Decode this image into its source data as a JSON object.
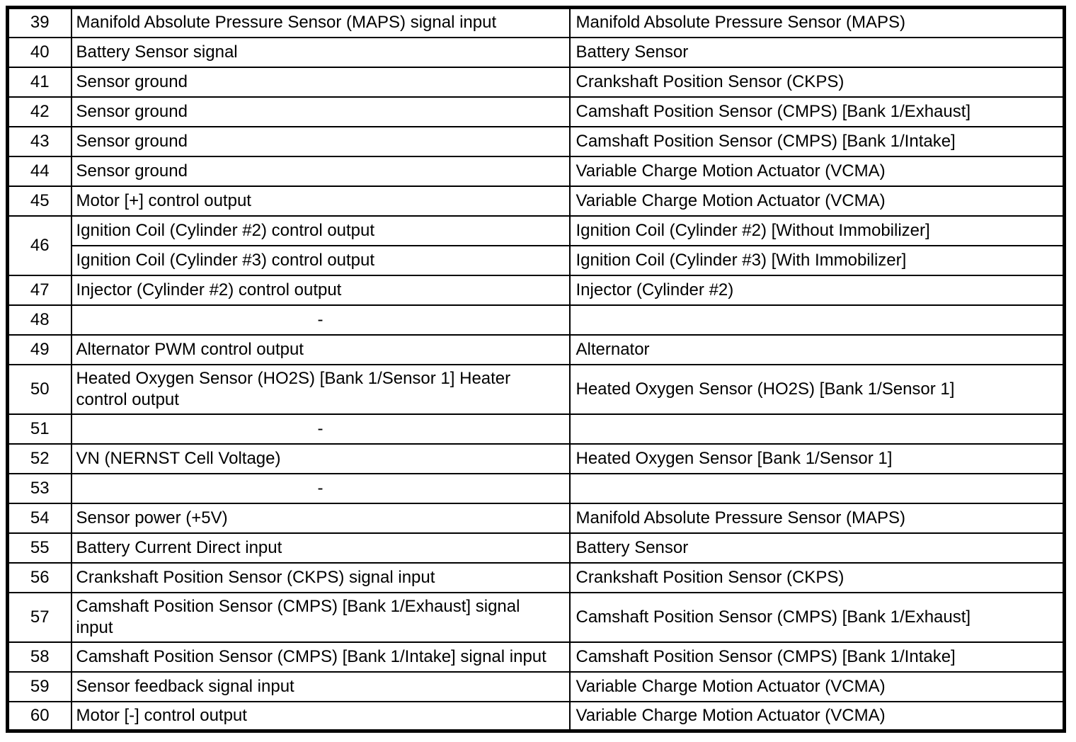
{
  "colors": {
    "background": "#ffffff",
    "border": "#000000",
    "text": "#000000"
  },
  "table": {
    "rows": [
      {
        "pin": "39",
        "description": "Manifold Absolute Pressure Sensor (MAPS) signal input",
        "component": "Manifold Absolute Pressure Sensor (MAPS)"
      },
      {
        "pin": "40",
        "description": "Battery Sensor signal",
        "component": "Battery Sensor"
      },
      {
        "pin": "41",
        "description": "Sensor ground",
        "component": "Crankshaft Position Sensor (CKPS)"
      },
      {
        "pin": "42",
        "description": "Sensor ground",
        "component": "Camshaft Position Sensor (CMPS) [Bank 1/Exhaust]"
      },
      {
        "pin": "43",
        "description": "Sensor ground",
        "component": "Camshaft Position Sensor (CMPS) [Bank 1/Intake]"
      },
      {
        "pin": "44",
        "description": "Sensor ground",
        "component": "Variable Charge Motion Actuator (VCMA)"
      },
      {
        "pin": "45",
        "description": "Motor [+] control output",
        "component": "Variable Charge Motion Actuator (VCMA)"
      },
      {
        "pin": "46",
        "subrows": [
          {
            "description": "Ignition Coil (Cylinder #2) control output",
            "component": "Ignition Coil (Cylinder #2) [Without Immobilizer]"
          },
          {
            "description": "Ignition Coil (Cylinder #3) control output",
            "component": "Ignition Coil (Cylinder #3) [With Immobilizer]"
          }
        ]
      },
      {
        "pin": "47",
        "description": "Injector (Cylinder #2) control output",
        "component": "Injector (Cylinder #2)"
      },
      {
        "pin": "48",
        "description": "-",
        "component": ""
      },
      {
        "pin": "49",
        "description": "Alternator PWM control output",
        "component": "Alternator"
      },
      {
        "pin": "50",
        "description": "Heated Oxygen Sensor (HO2S) [Bank 1/Sensor 1] Heater control output",
        "component": "Heated Oxygen Sensor (HO2S) [Bank 1/Sensor 1]"
      },
      {
        "pin": "51",
        "description": "-",
        "component": ""
      },
      {
        "pin": "52",
        "description": "VN (NERNST Cell Voltage)",
        "component": "Heated Oxygen Sensor [Bank 1/Sensor 1]"
      },
      {
        "pin": "53",
        "description": "-",
        "component": ""
      },
      {
        "pin": "54",
        "description": "Sensor power (+5V)",
        "component": "Manifold Absolute Pressure Sensor (MAPS)"
      },
      {
        "pin": "55",
        "description": "Battery Current Direct input",
        "component": "Battery Sensor"
      },
      {
        "pin": "56",
        "description": "Crankshaft Position Sensor (CKPS) signal input",
        "component": "Crankshaft Position Sensor (CKPS)"
      },
      {
        "pin": "57",
        "description": "Camshaft Position Sensor (CMPS) [Bank 1/Exhaust] signal input",
        "component": "Camshaft Position Sensor (CMPS) [Bank 1/Exhaust]"
      },
      {
        "pin": "58",
        "description": "Camshaft Position Sensor (CMPS) [Bank 1/Intake] signal input",
        "component": "Camshaft Position Sensor (CMPS) [Bank 1/Intake]"
      },
      {
        "pin": "59",
        "description": "Sensor feedback signal input",
        "component": "Variable Charge Motion Actuator (VCMA)"
      },
      {
        "pin": "60",
        "description": "Motor [-] control output",
        "component": "Variable Charge Motion Actuator (VCMA)"
      }
    ]
  }
}
